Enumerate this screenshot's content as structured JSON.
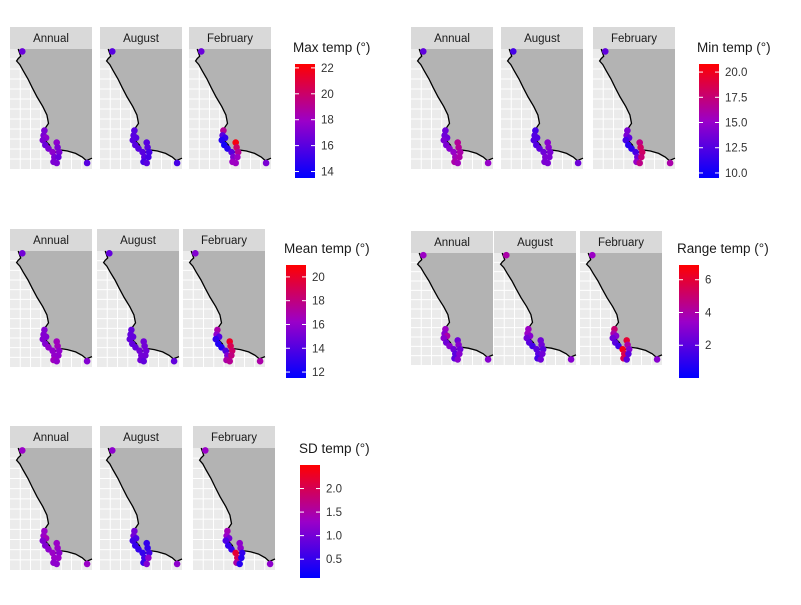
{
  "facet_labels": [
    "Annual",
    "August",
    "February"
  ],
  "colors": {
    "low": "#0000ff",
    "mid": "#9b00c8",
    "high": "#ff0000",
    "land": "#b3b3b3",
    "panel_bg": "#ebebeb",
    "strip_bg": "#d9d9d9",
    "coast": "#000000"
  },
  "chart_data": [
    {
      "type": "scatter",
      "kind": "faceted map",
      "legend_title": "Max temp (°)",
      "legend_ticks": [
        "22",
        "20",
        "18",
        "16",
        "14"
      ],
      "range": [
        13.5,
        22.3
      ],
      "tick_values": [
        22,
        20,
        18,
        16,
        14
      ],
      "sites": {
        "Annual": [
          16.5,
          17,
          17,
          17.5,
          17,
          16.5,
          17,
          17.5,
          17,
          17,
          17.5,
          17,
          17,
          16.5,
          17,
          16
        ],
        "August": [
          16,
          16,
          16,
          16,
          16,
          16,
          16,
          16,
          16,
          15.5,
          16,
          16,
          15.5,
          15.5,
          16,
          15.5
        ],
        "February": [
          16.5,
          19,
          16,
          15,
          14.5,
          14,
          14.5,
          16,
          17,
          18,
          22,
          20,
          19,
          18,
          18,
          17
        ]
      }
    },
    {
      "type": "scatter",
      "kind": "faceted map",
      "legend_title": "Min temp (°)",
      "legend_ticks": [
        "20.0",
        "17.5",
        "15.0",
        "12.5",
        "10.0"
      ],
      "range": [
        9.5,
        20.8
      ],
      "tick_values": [
        20.0,
        17.5,
        15.0,
        12.5,
        10.0
      ],
      "sites": {
        "Annual": [
          13,
          13.5,
          13.5,
          13.5,
          14,
          14,
          14.5,
          15,
          15.5,
          16,
          16.5,
          16.5,
          16,
          16,
          15.5,
          15
        ],
        "August": [
          12,
          12,
          12.5,
          12.5,
          12.5,
          12.5,
          13,
          13.5,
          14,
          14,
          14.5,
          14.5,
          14,
          14,
          14,
          13.5
        ],
        "February": [
          13,
          14,
          14,
          13,
          12,
          11,
          11,
          12,
          13.5,
          15,
          17,
          18,
          18,
          17.5,
          17,
          16
        ]
      }
    },
    {
      "type": "scatter",
      "kind": "faceted map",
      "legend_title": "Mean temp (°)",
      "legend_ticks": [
        "20",
        "18",
        "16",
        "14",
        "12"
      ],
      "range": [
        11.5,
        21.0
      ],
      "tick_values": [
        20,
        18,
        16,
        14,
        12
      ],
      "sites": {
        "Annual": [
          15,
          15.5,
          15.5,
          15.5,
          15.5,
          15.5,
          16,
          16,
          16,
          16.5,
          16.5,
          16.5,
          16,
          16,
          16,
          15.5
        ],
        "August": [
          14.5,
          14.5,
          14.5,
          14.5,
          14.5,
          14.5,
          14.5,
          15,
          15,
          15,
          15,
          15,
          15,
          15,
          14.5,
          14.5
        ],
        "February": [
          15.5,
          17,
          16,
          14,
          13,
          12.5,
          12.5,
          14,
          15.5,
          17,
          20,
          19,
          18.5,
          18,
          17.5,
          17
        ]
      }
    },
    {
      "type": "scatter",
      "kind": "faceted map",
      "legend_title": "Range temp (°)",
      "legend_ticks": [
        "6",
        "4",
        "2"
      ],
      "range": [
        0,
        6.9
      ],
      "tick_values": [
        6,
        4,
        2
      ],
      "sites": {
        "Annual": [
          3.5,
          3.5,
          3,
          4,
          3,
          2.5,
          3,
          2.5,
          2,
          2,
          2.5,
          3,
          2.5,
          3,
          3,
          3
        ],
        "August": [
          4,
          3.5,
          3.5,
          3,
          2.5,
          2,
          1.5,
          2,
          2,
          1.5,
          2.5,
          2.5,
          2,
          2.5,
          2.5,
          3
        ],
        "February": [
          3.5,
          5,
          4,
          3,
          2.5,
          2,
          1.5,
          6.5,
          5.5,
          5.5,
          6,
          4,
          3,
          2,
          2,
          3
        ]
      }
    },
    {
      "type": "scatter",
      "kind": "faceted map",
      "legend_title": "SD temp (°)",
      "legend_ticks": [
        "2.0",
        "1.5",
        "1.0",
        "0.5"
      ],
      "range": [
        0.1,
        2.5
      ],
      "tick_values": [
        2.0,
        1.5,
        1.0,
        0.5
      ],
      "sites": {
        "Annual": [
          1.3,
          1.3,
          1.3,
          1.4,
          1.1,
          1.1,
          1.2,
          1.3,
          1.3,
          1.2,
          1.3,
          1.3,
          1.2,
          1.3,
          1.2,
          1.3
        ],
        "August": [
          1.2,
          1,
          1,
          0.7,
          0.6,
          0.5,
          0.5,
          0.5,
          0.6,
          0.5,
          0.5,
          0.5,
          0.6,
          1.2,
          1.1,
          1.2
        ],
        "February": [
          1.3,
          1.4,
          1.3,
          1,
          0.7,
          0.5,
          0.5,
          2.2,
          2,
          1.5,
          1.2,
          1.2,
          0.5,
          0.4,
          0.4,
          1.2
        ]
      }
    }
  ]
}
